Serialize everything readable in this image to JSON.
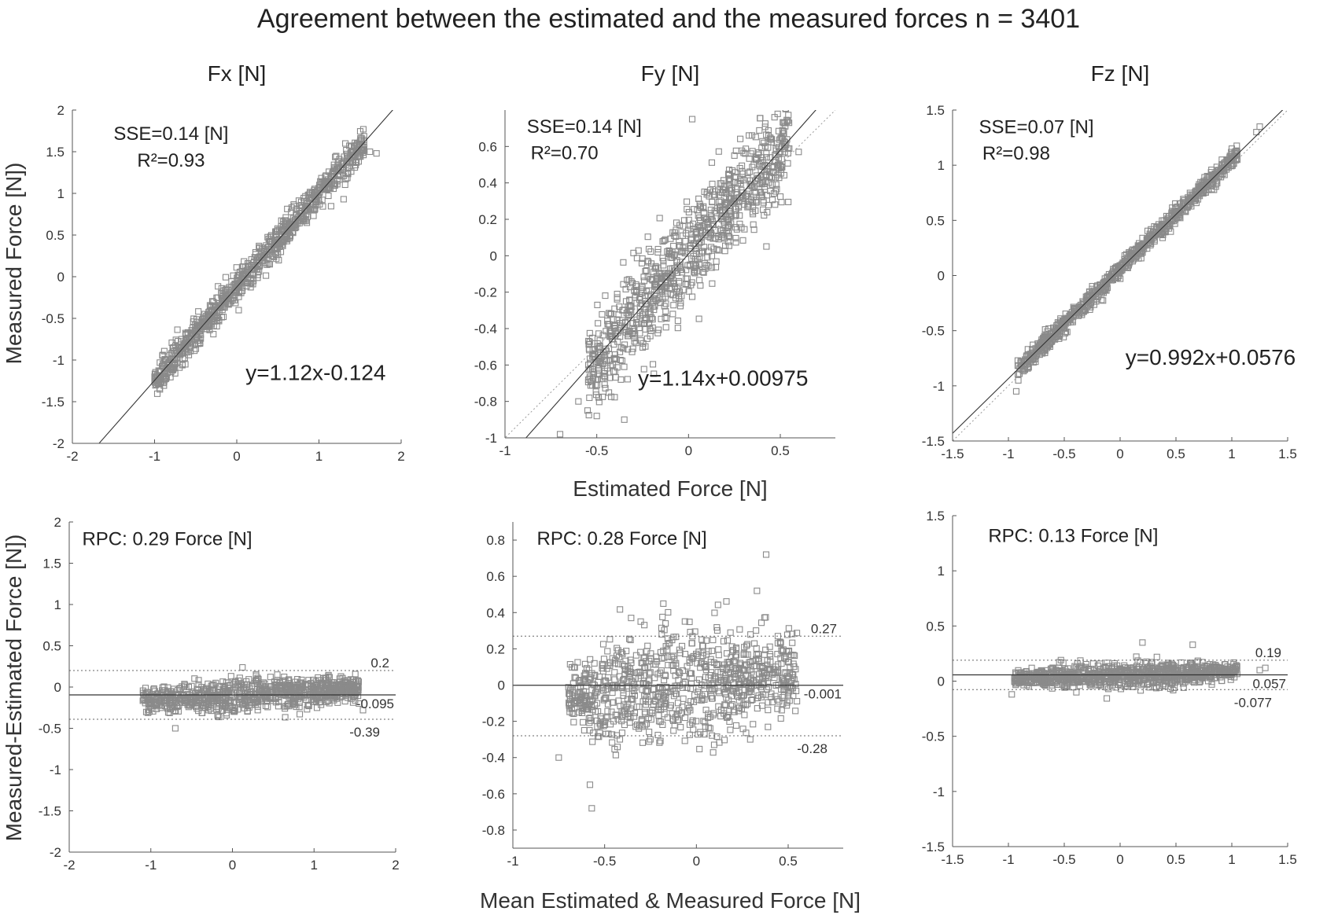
{
  "figure": {
    "title": "Agreement between the estimated and the measured forces n = 3401",
    "ylabel_top": "Measured Force [N])",
    "xlabel_top": "Estimated Force [N]",
    "ylabel_bottom": "Measured-Estimated Force [N])",
    "xlabel_bottom": "Mean Estimated & Measured Force [N]",
    "marker_color": "#8a8a8a",
    "line_color": "#333333"
  },
  "chart_data": [
    {
      "id": "fx-scatter",
      "type": "scatter",
      "column_title": "Fx [N]",
      "xlim": [
        -2,
        2
      ],
      "ylim": [
        -2,
        2
      ],
      "xticks": [
        -2,
        -1,
        0,
        1,
        2
      ],
      "xtick_labels": [
        "-2",
        "-1",
        "0",
        "1",
        "2"
      ],
      "yticks": [
        -2,
        -1.5,
        -1,
        -0.5,
        0,
        0.5,
        1,
        1.5,
        2
      ],
      "ytick_labels": [
        "-2",
        "-1.5",
        "-1",
        "-0.5",
        "0",
        "0.5",
        "1",
        "1.5",
        "2"
      ],
      "sse": "SSE=0.14 [N]",
      "r2": "R²=0.93",
      "equation": "y=1.12x-0.124",
      "fit": {
        "slope": 1.12,
        "intercept": -0.124
      },
      "identity_line": false,
      "x_range": [
        -1.0,
        1.55
      ],
      "noise": 0.09,
      "outliers": [
        [
          1.7,
          1.48
        ],
        [
          1.62,
          1.5
        ],
        [
          1.55,
          1.55
        ],
        [
          -1.0,
          -1.2
        ],
        [
          1.3,
          0.93
        ]
      ]
    },
    {
      "id": "fy-scatter",
      "type": "scatter",
      "column_title": "Fy [N]",
      "xlim": [
        -1,
        0.8
      ],
      "ylim": [
        -1,
        0.8
      ],
      "xticks": [
        -1,
        -0.5,
        0,
        0.5
      ],
      "xtick_labels": [
        "-1",
        "-0.5",
        "0",
        "0.5"
      ],
      "yticks": [
        -1,
        -0.8,
        -0.6,
        -0.4,
        -0.2,
        0,
        0.2,
        0.4,
        0.6
      ],
      "ytick_labels": [
        "-1",
        "-0.8",
        "-0.6",
        "-0.4",
        "-0.2",
        "0",
        "0.2",
        "0.4",
        "0.6"
      ],
      "sse": "SSE=0.14 [N]",
      "r2": "R²=0.70",
      "equation": "y=1.14x+0.00975",
      "fit": {
        "slope": 1.14,
        "intercept": 0.00975
      },
      "identity_line": true,
      "x_range": [
        -0.55,
        0.55
      ],
      "noise": 0.14,
      "outliers": [
        [
          0.02,
          0.75
        ],
        [
          -0.7,
          -0.98
        ],
        [
          -0.55,
          -0.85
        ],
        [
          -0.5,
          -0.88
        ],
        [
          -0.6,
          -0.8
        ],
        [
          0.6,
          0.57
        ],
        [
          0.25,
          0.55
        ],
        [
          -0.35,
          -0.9
        ]
      ]
    },
    {
      "id": "fz-scatter",
      "type": "scatter",
      "column_title": "Fz [N]",
      "xlim": [
        -1.5,
        1.5
      ],
      "ylim": [
        -1.5,
        1.5
      ],
      "xticks": [
        -1.5,
        -1,
        -0.5,
        0,
        0.5,
        1,
        1.5
      ],
      "xtick_labels": [
        "-1.5",
        "-1",
        "-0.5",
        "0",
        "0.5",
        "1",
        "1.5"
      ],
      "yticks": [
        -1.5,
        -1,
        -0.5,
        0,
        0.5,
        1,
        1.5
      ],
      "ytick_labels": [
        "-1.5",
        "-1",
        "-0.5",
        "0",
        "0.5",
        "1",
        "1.5"
      ],
      "sse": "SSE=0.07 [N]",
      "r2": "R²=0.98",
      "equation": "y=0.992x+0.0576",
      "fit": {
        "slope": 0.992,
        "intercept": 0.0576
      },
      "identity_line": true,
      "x_range": [
        -0.92,
        1.05
      ],
      "noise": 0.04,
      "outliers": [
        [
          1.25,
          1.35
        ],
        [
          1.22,
          1.3
        ],
        [
          -0.93,
          -1.05
        ],
        [
          1.0,
          1.15
        ]
      ]
    },
    {
      "id": "fx-bland-altman",
      "type": "scatter",
      "subtype": "bland-altman",
      "xlim": [
        -2,
        2
      ],
      "ylim": [
        -2,
        2
      ],
      "xticks": [
        -2,
        -1,
        0,
        1,
        2
      ],
      "xtick_labels": [
        "-2",
        "-1",
        "0",
        "1",
        "2"
      ],
      "yticks": [
        -2,
        -1.5,
        -1,
        -0.5,
        0,
        0.5,
        1,
        1.5,
        2
      ],
      "ytick_labels": [
        "-2",
        "-1.5",
        "-1",
        "-0.5",
        "0",
        "0.5",
        "1",
        "1.5",
        "2"
      ],
      "rpc": "RPC: 0.29 Force [N]",
      "mean_line": -0.095,
      "upper_loa": 0.2,
      "lower_loa": -0.39,
      "mean_label": "-0.095",
      "upper_label": "0.2",
      "lower_label": "-0.39",
      "x_range": [
        -1.1,
        1.55
      ],
      "noise": 0.08,
      "outliers": [
        [
          1.6,
          -0.28
        ],
        [
          1.55,
          -0.2
        ],
        [
          -0.7,
          -0.5
        ]
      ]
    },
    {
      "id": "fy-bland-altman",
      "type": "scatter",
      "subtype": "bland-altman",
      "xlim": [
        -1,
        0.8
      ],
      "ylim": [
        -0.9,
        0.9
      ],
      "xticks": [
        -1,
        -0.5,
        0,
        0.5
      ],
      "xtick_labels": [
        "-1",
        "-0.5",
        "0",
        "0.5"
      ],
      "yticks": [
        -0.8,
        -0.6,
        -0.4,
        -0.2,
        0,
        0.2,
        0.4,
        0.6,
        0.8
      ],
      "ytick_labels": [
        "-0.8",
        "-0.6",
        "-0.4",
        "-0.2",
        "0",
        "0.2",
        "0.4",
        "0.6",
        "0.8"
      ],
      "rpc": "RPC: 0.28 Force [N]",
      "mean_line": -0.001,
      "upper_loa": 0.27,
      "lower_loa": -0.28,
      "mean_label": "-0.001",
      "upper_label": "0.27",
      "lower_label": "-0.28",
      "x_range": [
        -0.7,
        0.55
      ],
      "noise": 0.13,
      "outliers": [
        [
          0.38,
          0.72
        ],
        [
          -0.57,
          -0.68
        ],
        [
          -0.58,
          -0.55
        ],
        [
          0.33,
          0.52
        ],
        [
          -0.75,
          -0.4
        ]
      ]
    },
    {
      "id": "fz-bland-altman",
      "type": "scatter",
      "subtype": "bland-altman",
      "xlim": [
        -1.5,
        1.5
      ],
      "ylim": [
        -1.5,
        1.5
      ],
      "xticks": [
        -1.5,
        -1,
        -0.5,
        0,
        0.5,
        1,
        1.5
      ],
      "xtick_labels": [
        "-1.5",
        "-1",
        "-0.5",
        "0",
        "0.5",
        "1",
        "1.5"
      ],
      "yticks": [
        -1.5,
        -1,
        -0.5,
        0,
        0.5,
        1,
        1.5
      ],
      "ytick_labels": [
        "-1.5",
        "-1",
        "-0.5",
        "0",
        "0.5",
        "1",
        "1.5"
      ],
      "rpc": "RPC: 0.13 Force [N]",
      "mean_line": 0.057,
      "upper_loa": 0.19,
      "lower_loa": -0.077,
      "mean_label": "0.057",
      "upper_label": "0.19",
      "lower_label": "-0.077",
      "x_range": [
        -0.95,
        1.05
      ],
      "noise": 0.045,
      "outliers": [
        [
          1.3,
          0.12
        ],
        [
          1.25,
          0.1
        ],
        [
          -0.97,
          -0.12
        ],
        [
          0.65,
          0.33
        ],
        [
          0.2,
          0.35
        ]
      ]
    }
  ]
}
